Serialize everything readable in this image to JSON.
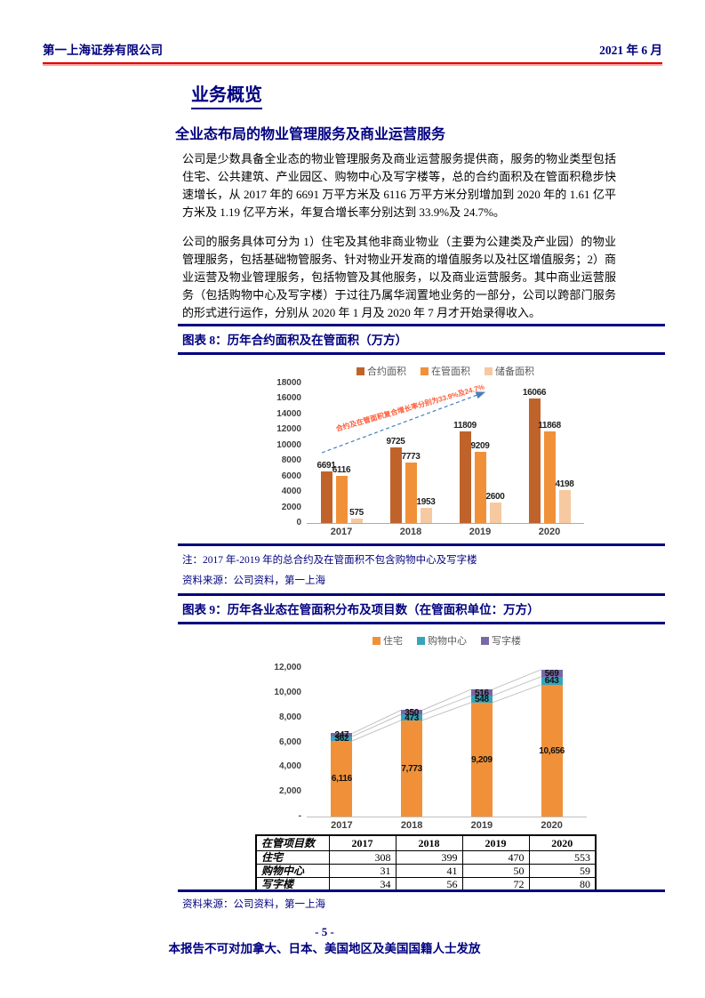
{
  "header": {
    "company": "第一上海证券有限公司",
    "date": "2021 年 6 月"
  },
  "section": {
    "title": "业务概览",
    "subtitle": "全业态布局的物业管理服务及商业运营服务",
    "paragraphs": [
      "公司是少数具备全业态的物业管理服务及商业运营服务提供商，服务的物业类型包括住宅、公共建筑、产业园区、购物中心及写字楼等，总的合约面积及在管面积稳步快速增长，从 2017 年的 6691 万平方米及 6116 万平方米分别增加到 2020 年的 1.61 亿平方米及 1.19 亿平方米，年复合增长率分别达到 33.9%及 24.7%。",
      "公司的服务具体可分为 1）住宅及其他非商业物业（主要为公建类及产业园）的物业管理服务，包括基础物管服务、针对物业开发商的增值服务以及社区增值服务；2）商业运营及物业管理服务，包括物管及其他服务，以及商业运营服务。其中商业运营服务（包括购物中心及写字楼）于过往乃属华润置地业务的一部分，公司以跨部门服务的形式进行运作，分别从 2020 年 1 月及 2020 年 7 月才开始录得收入。"
    ]
  },
  "chart_data": [
    {
      "type": "bar",
      "title": "图表 8：历年合约面积及在管面积（万方）",
      "categories": [
        "2017",
        "2018",
        "2019",
        "2020"
      ],
      "series": [
        {
          "name": "合约面积",
          "color": "#C0632B",
          "values": [
            6691,
            9725,
            11809,
            16066
          ],
          "labels": [
            "6691",
            "9725",
            "11809",
            "16066"
          ]
        },
        {
          "name": "在管面积",
          "color": "#F0913A",
          "values": [
            6116,
            7773,
            9209,
            11868
          ],
          "labels": [
            "6116",
            "7773",
            "9209",
            "11868"
          ]
        },
        {
          "name": "储备面积",
          "color": "#F6C9A0",
          "values": [
            575,
            1953,
            2600,
            4198
          ],
          "labels": [
            "575",
            "1953",
            "2600",
            "4198"
          ]
        }
      ],
      "ylim": [
        0,
        18000
      ],
      "yticks": [
        "18000",
        "16000",
        "14000",
        "12000",
        "10000",
        "8000",
        "6000",
        "4000",
        "2000",
        "0"
      ],
      "legend_position": "top",
      "grid": false,
      "annotation": "合约及在管面积复合增长率分别为33.9%及24.7%",
      "note": "注：2017 年-2019 年的总合约及在管面积不包含购物中心及写字楼",
      "source": "资料来源：公司资料，第一上海"
    },
    {
      "type": "stacked-bar",
      "title": "图表 9：历年各业态在管面积分布及项目数（在管面积单位：万方）",
      "categories": [
        "2017",
        "2018",
        "2019",
        "2020"
      ],
      "series": [
        {
          "name": "住宅",
          "color": "#F0913A",
          "values": [
            6116,
            7773,
            9209,
            10656
          ],
          "labels": [
            "6,116",
            "7,773",
            "9,209",
            "10,656"
          ]
        },
        {
          "name": "购物中心",
          "color": "#35A4BC",
          "values": [
            362,
            473,
            548,
            643
          ],
          "labels": [
            "362",
            "473",
            "548",
            "643"
          ]
        },
        {
          "name": "写字楼",
          "color": "#7A68A6",
          "values": [
            247,
            350,
            516,
            569
          ],
          "labels": [
            "247",
            "350",
            "516",
            "569"
          ]
        }
      ],
      "ylim": [
        0,
        12000
      ],
      "yticks": [
        "12,000",
        "10,000",
        "8,000",
        "6,000",
        "4,000",
        "2,000",
        "-"
      ],
      "legend_position": "top",
      "grid": false
    }
  ],
  "table": {
    "header": [
      "在管项目数",
      "2017",
      "2018",
      "2019",
      "2020"
    ],
    "rows": [
      {
        "label": "住宅",
        "values": [
          "308",
          "399",
          "470",
          "553"
        ]
      },
      {
        "label": "购物中心",
        "values": [
          "31",
          "41",
          "50",
          "59"
        ]
      },
      {
        "label": "写字楼",
        "values": [
          "34",
          "56",
          "72",
          "80"
        ]
      }
    ],
    "source": "资料来源：公司资料，第一上海"
  },
  "footer": {
    "page_number": "- 5 -",
    "disclaimer": "本报告不可对加拿大、日本、美国地区及美国国籍人士发放"
  },
  "colors": {
    "navy": "#000080",
    "red_rule": "#E00000"
  }
}
